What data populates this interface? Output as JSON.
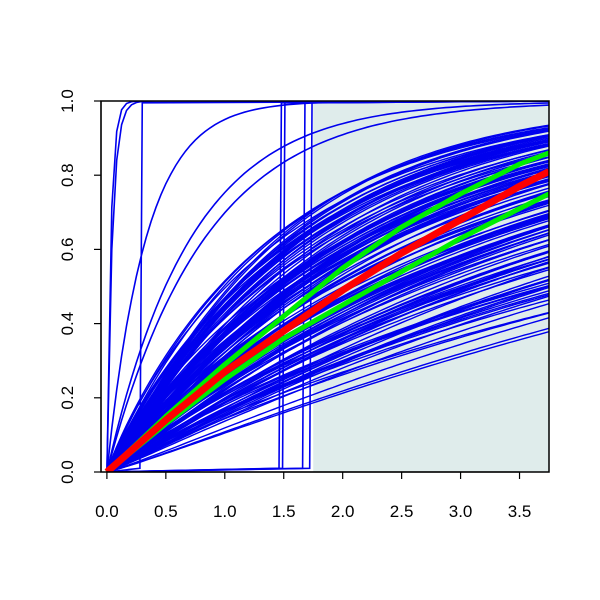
{
  "chart_data": {
    "type": "line",
    "title": "",
    "xlabel": "",
    "ylabel": "",
    "xlim": [
      -0.05,
      3.75
    ],
    "ylim": [
      0.0,
      1.0
    ],
    "x_ticks": [
      0.0,
      0.5,
      1.0,
      1.5,
      2.0,
      2.5,
      3.0,
      3.5
    ],
    "x_tick_labels": [
      "0.0",
      "0.5",
      "1.0",
      "1.5",
      "2.0",
      "2.5",
      "3.0",
      "3.5"
    ],
    "y_ticks": [
      0.0,
      0.2,
      0.4,
      0.6,
      0.8,
      1.0
    ],
    "y_tick_labels": [
      "0.0",
      "0.2",
      "0.4",
      "0.6",
      "0.8",
      "1.0"
    ],
    "grid": false,
    "legend": "none",
    "shaded_region": {
      "x_from": 1.75,
      "x_to": 3.75,
      "y_from": 0.0,
      "y_to": 1.0,
      "color": "#dfeceb"
    },
    "colors": {
      "samples": "#0000ee",
      "central": "#ff0000",
      "band": "#00ee00"
    },
    "sample_curves": {
      "count": 150,
      "note_rendered_as": "gamma-type CDF curves",
      "concave_ends_at_x": 3.75,
      "concave_end_value_range": [
        0.4,
        0.93
      ],
      "extra": [
        {
          "kind": "steep",
          "rate": 30
        },
        {
          "kind": "steep",
          "rate": 22
        },
        {
          "kind": "step",
          "at": 0.28
        },
        {
          "kind": "step",
          "at": 1.46
        },
        {
          "kind": "step",
          "at": 1.49
        },
        {
          "kind": "step",
          "at": 1.66
        },
        {
          "kind": "step",
          "at": 1.72
        },
        {
          "kind": "exp",
          "rate": 3.0
        },
        {
          "kind": "exp",
          "rate": 1.4
        },
        {
          "kind": "exp",
          "rate": 1.2
        },
        {
          "kind": "exp",
          "rate": 0.6
        }
      ]
    },
    "central_curve": {
      "x": [
        0.0,
        0.5,
        1.0,
        1.5,
        2.0,
        2.5,
        3.0,
        3.5,
        3.75
      ],
      "y": [
        0.0,
        0.14,
        0.27,
        0.38,
        0.49,
        0.59,
        0.68,
        0.77,
        0.81
      ]
    },
    "band_upper": {
      "x": [
        0.0,
        0.5,
        1.0,
        1.5,
        2.0,
        2.5,
        3.0,
        3.5,
        3.75
      ],
      "y": [
        0.0,
        0.15,
        0.29,
        0.42,
        0.55,
        0.66,
        0.75,
        0.83,
        0.86
      ]
    },
    "band_lower": {
      "x": [
        0.0,
        0.5,
        1.0,
        1.5,
        2.0,
        2.5,
        3.0,
        3.5,
        3.75
      ],
      "y": [
        0.0,
        0.13,
        0.25,
        0.36,
        0.45,
        0.54,
        0.63,
        0.71,
        0.75
      ]
    }
  }
}
